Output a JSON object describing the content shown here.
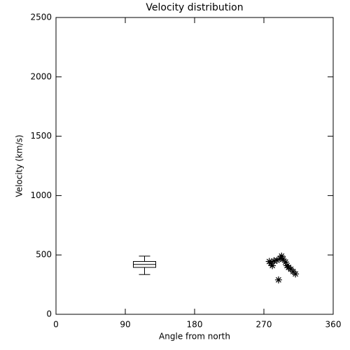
{
  "chart_data": {
    "type": "scatter",
    "title": "Velocity distribution",
    "xlabel": "Angle from north",
    "ylabel": "Velocity (km/s)",
    "xlim": [
      0,
      360
    ],
    "ylim": [
      0,
      2500
    ],
    "xticks": [
      0,
      90,
      180,
      270,
      360
    ],
    "yticks": [
      0,
      500,
      1000,
      1500,
      2000,
      2500
    ],
    "marker": "asterisk",
    "color": "#000000",
    "x": [
      277,
      279,
      281,
      283,
      287,
      291,
      293,
      295,
      298,
      300,
      302,
      305,
      308,
      311,
      289
    ],
    "y": [
      445,
      430,
      410,
      450,
      455,
      470,
      490,
      465,
      440,
      410,
      395,
      380,
      360,
      340,
      290
    ],
    "box": {
      "x": 115,
      "whisker_low": 335,
      "q1": 395,
      "median": 420,
      "q3": 445,
      "whisker_high": 490
    }
  }
}
